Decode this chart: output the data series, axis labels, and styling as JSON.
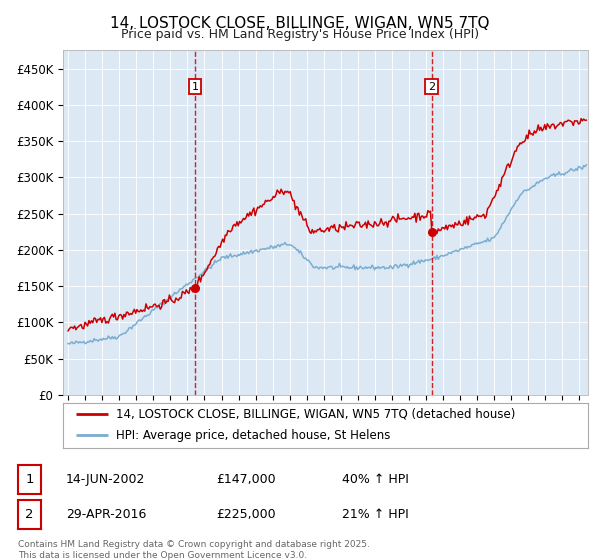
{
  "title": "14, LOSTOCK CLOSE, BILLINGE, WIGAN, WN5 7TQ",
  "subtitle": "Price paid vs. HM Land Registry's House Price Index (HPI)",
  "legend_line1": "14, LOSTOCK CLOSE, BILLINGE, WIGAN, WN5 7TQ (detached house)",
  "legend_line2": "HPI: Average price, detached house, St Helens",
  "transaction1_date": "14-JUN-2002",
  "transaction1_price": 147000,
  "transaction1_hpi": "40% ↑ HPI",
  "transaction2_date": "29-APR-2016",
  "transaction2_price": 225000,
  "transaction2_hpi": "21% ↑ HPI",
  "footnote": "Contains HM Land Registry data © Crown copyright and database right 2025.\nThis data is licensed under the Open Government Licence v3.0.",
  "red_color": "#cc0000",
  "blue_color": "#7aadcf",
  "bg_color": "#dce9f5",
  "transaction1_x": 2002.45,
  "transaction2_x": 2016.33,
  "ylim_min": 0,
  "ylim_max": 475000,
  "xmin": 1994.7,
  "xmax": 2025.5
}
